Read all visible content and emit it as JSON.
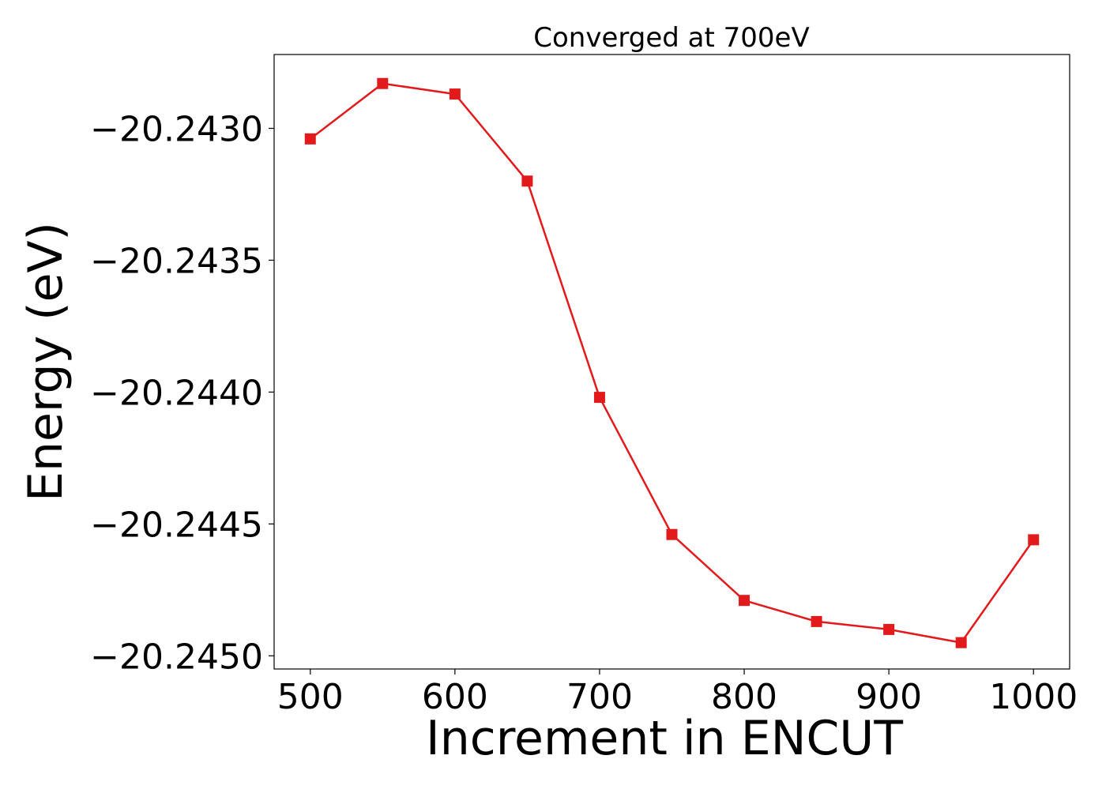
{
  "chart_data": {
    "type": "line",
    "title": "Converged at 700eV",
    "xlabel": "Increment in ENCUT",
    "ylabel": "Energy (eV)",
    "x": [
      500,
      550,
      600,
      650,
      700,
      750,
      800,
      850,
      900,
      950,
      1000
    ],
    "series": [
      {
        "values": [
          -20.24304,
          -20.24283,
          -20.24287,
          -20.2432,
          -20.24402,
          -20.24454,
          -20.24479,
          -20.24487,
          -20.2449,
          -20.24495,
          -20.24456
        ],
        "color": "#e31a1c",
        "marker": "square"
      }
    ],
    "xticks": [
      500,
      600,
      700,
      800,
      900,
      1000
    ],
    "xtick_labels": [
      "500",
      "600",
      "700",
      "800",
      "900",
      "1000"
    ],
    "yticks": [
      -20.245,
      -20.2445,
      -20.244,
      -20.2435,
      -20.243
    ],
    "ytick_labels": [
      "−20.2450",
      "−20.2445",
      "−20.2440",
      "−20.2435",
      "−20.2430"
    ],
    "xlim": [
      475,
      1025
    ],
    "ylim": [
      -20.24505,
      -20.24272
    ],
    "grid": false,
    "legend": "none"
  }
}
